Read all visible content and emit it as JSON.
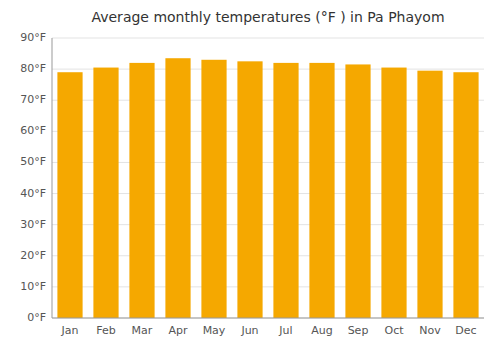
{
  "chart_data": {
    "type": "bar",
    "title": "Average monthly temperatures (°F ) in Pa Phayom",
    "categories": [
      "Jan",
      "Feb",
      "Mar",
      "Apr",
      "May",
      "Jun",
      "Jul",
      "Aug",
      "Sep",
      "Oct",
      "Nov",
      "Dec"
    ],
    "values": [
      79,
      80.5,
      82,
      83.5,
      83,
      82.5,
      82,
      82,
      81.5,
      80.5,
      79.5,
      79
    ],
    "color": "#F5A800",
    "ylim": [
      0,
      90
    ],
    "yticks": [
      {
        "value": 0,
        "label": "0°F"
      },
      {
        "value": 10,
        "label": "10°F"
      },
      {
        "value": 20,
        "label": "20°F"
      },
      {
        "value": 30,
        "label": "30°F"
      },
      {
        "value": 40,
        "label": "40°F"
      },
      {
        "value": 50,
        "label": "50°F"
      },
      {
        "value": 60,
        "label": "60°F"
      },
      {
        "value": 70,
        "label": "70°F"
      },
      {
        "value": 80,
        "label": "80°F"
      },
      {
        "value": 90,
        "label": "90°F"
      }
    ],
    "grid": true
  }
}
